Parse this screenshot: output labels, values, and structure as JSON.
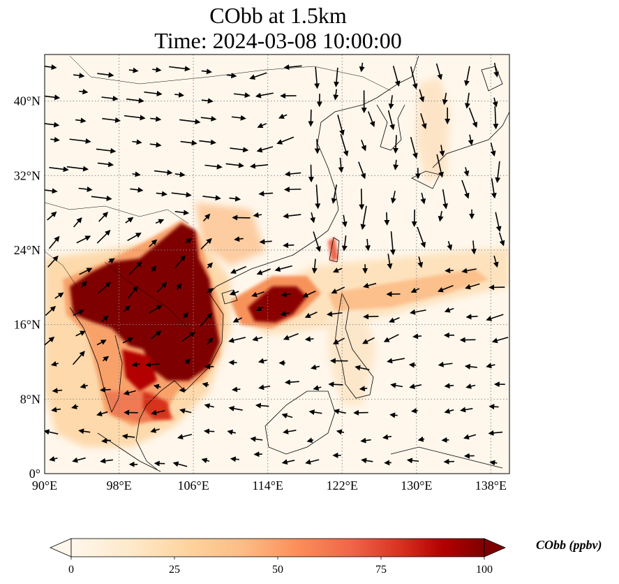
{
  "title": {
    "line1": "CObb at 1.5km",
    "line2": "Time: 2024-03-08 10:00:00"
  },
  "map": {
    "lon_range": [
      90,
      140
    ],
    "lat_range": [
      0,
      45
    ],
    "lon_ticks": [
      "90°E",
      "98°E",
      "106°E",
      "114°E",
      "122°E",
      "130°E",
      "138°E"
    ],
    "lat_ticks": [
      "0°",
      "8°N",
      "16°N",
      "24°N",
      "32°N",
      "40°N"
    ],
    "gridlines": true
  },
  "colorbar": {
    "label": "CObb (ppbv)",
    "ticks": [
      "0",
      "25",
      "50",
      "75",
      "100"
    ],
    "min": 0,
    "max": 100,
    "colormap": "OrRd",
    "extend": "both"
  },
  "colors": {
    "c0": "#fff7ec",
    "c1": "#fee8c8",
    "c2": "#fdd49e",
    "c3": "#fdbb84",
    "c4": "#fc8d59",
    "c5": "#ef6548",
    "c6": "#d7301f",
    "c7": "#b30000",
    "c8": "#7f0000"
  }
}
